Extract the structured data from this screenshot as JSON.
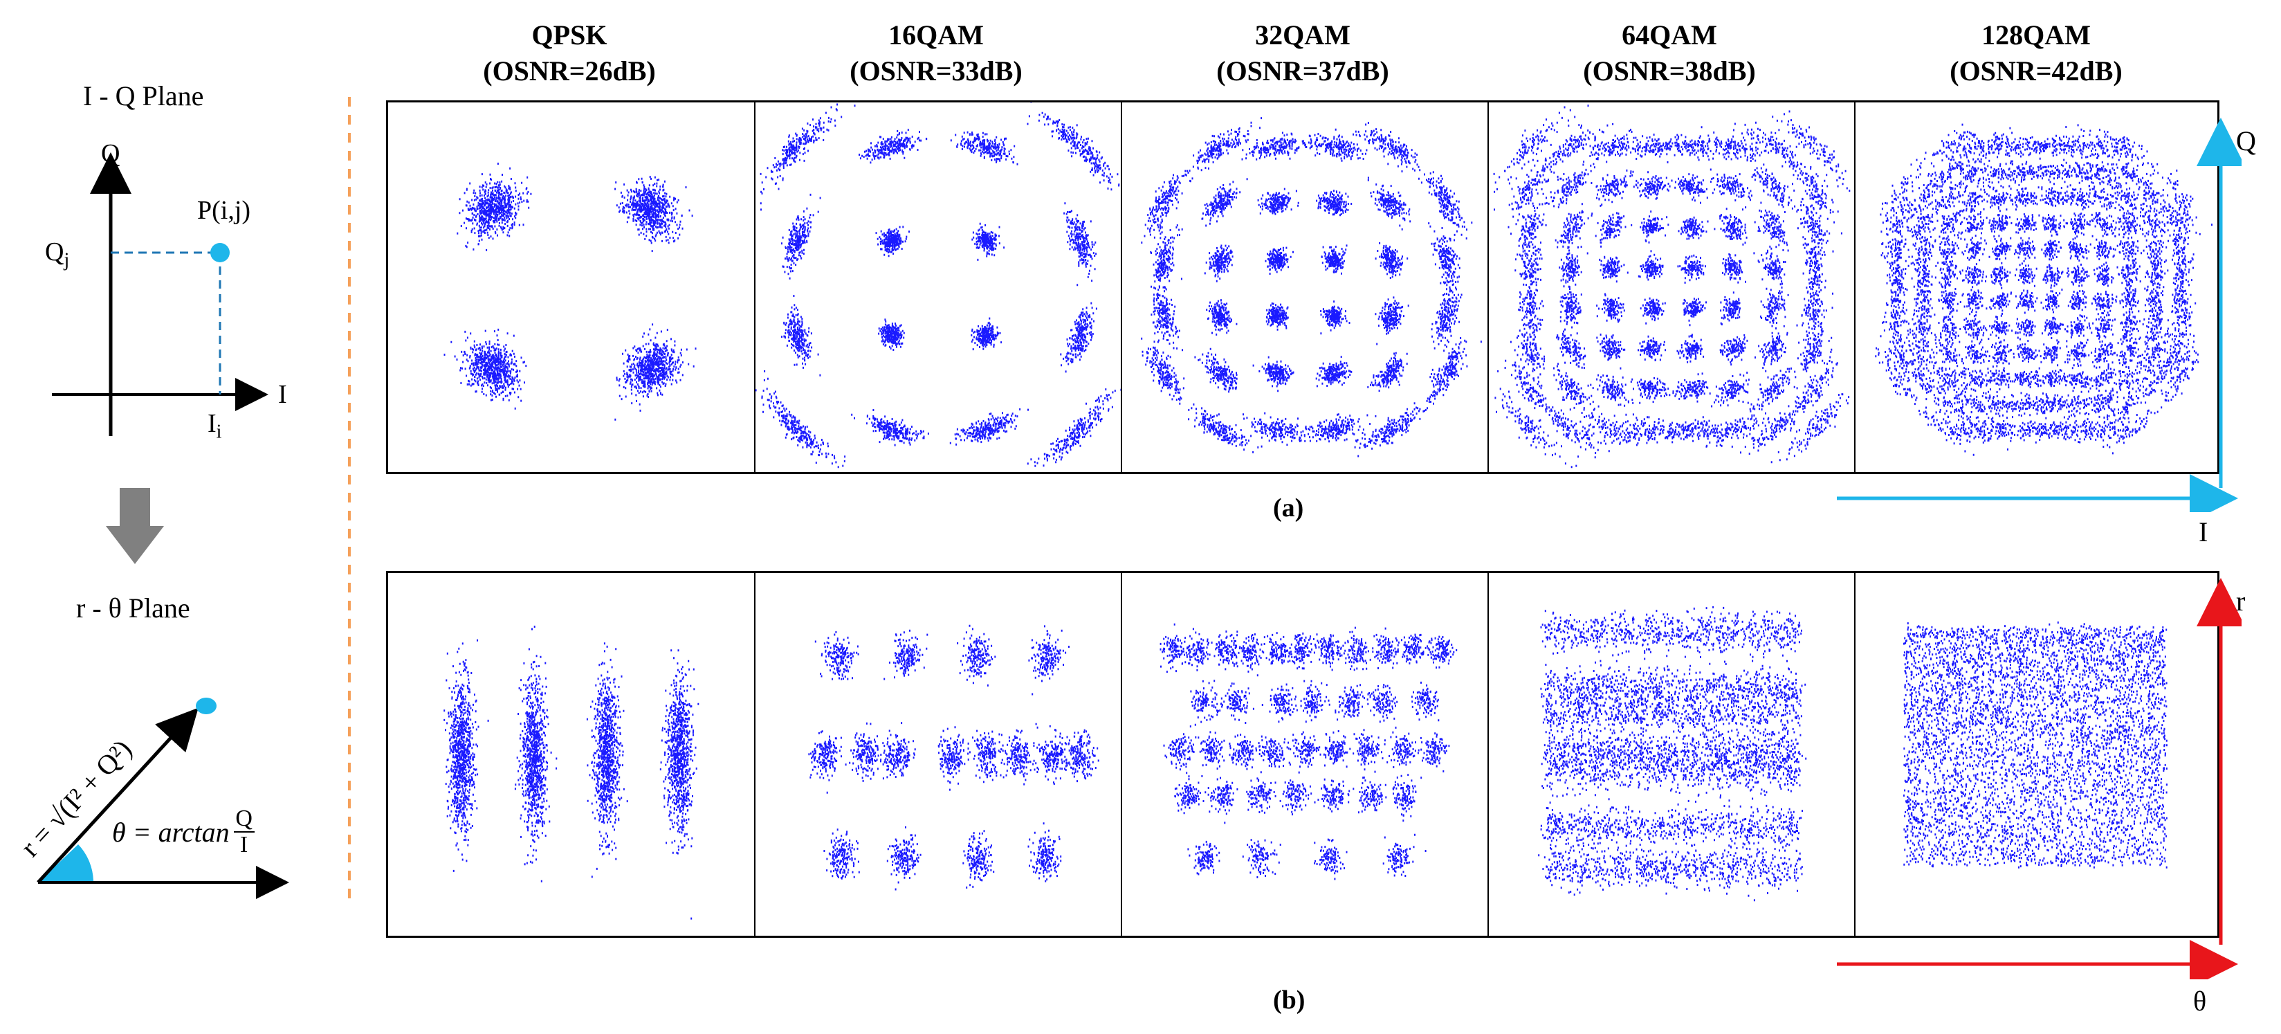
{
  "left": {
    "iq_title": "I - Q  Plane",
    "axis_q": "Q",
    "axis_i": "I",
    "point_label": "P(i,j)",
    "qj_label": "Q",
    "qj_sub": "j",
    "ii_label": "I",
    "ii_sub": "i",
    "rtheta_title": "r - θ  Plane",
    "r_formula": "r = √(I² + Q²)",
    "theta_formula_prefix": "θ = arctan",
    "theta_num": "Q",
    "theta_den": "I",
    "dot_color": "#1eb6ea",
    "arrow_color": "#808080"
  },
  "columns": [
    {
      "name": "QPSK",
      "osnr": "(OSNR=26dB)"
    },
    {
      "name": "16QAM",
      "osnr": "(OSNR=33dB)"
    },
    {
      "name": "32QAM",
      "osnr": "(OSNR=37dB)"
    },
    {
      "name": "64QAM",
      "osnr": "(OSNR=38dB)"
    },
    {
      "name": "128QAM",
      "osnr": "(OSNR=42dB)"
    }
  ],
  "captions": {
    "a": "(a)",
    "b": "(b)"
  },
  "axes_right": {
    "top_vertical": "Q",
    "top_horizontal": "I",
    "bottom_vertical": "r",
    "bottom_horizontal": "θ",
    "top_color": "#1eb6ea",
    "bottom_color": "#e8161b"
  },
  "colors": {
    "points": "#1a1aff",
    "separator": "#f5a05a"
  }
}
